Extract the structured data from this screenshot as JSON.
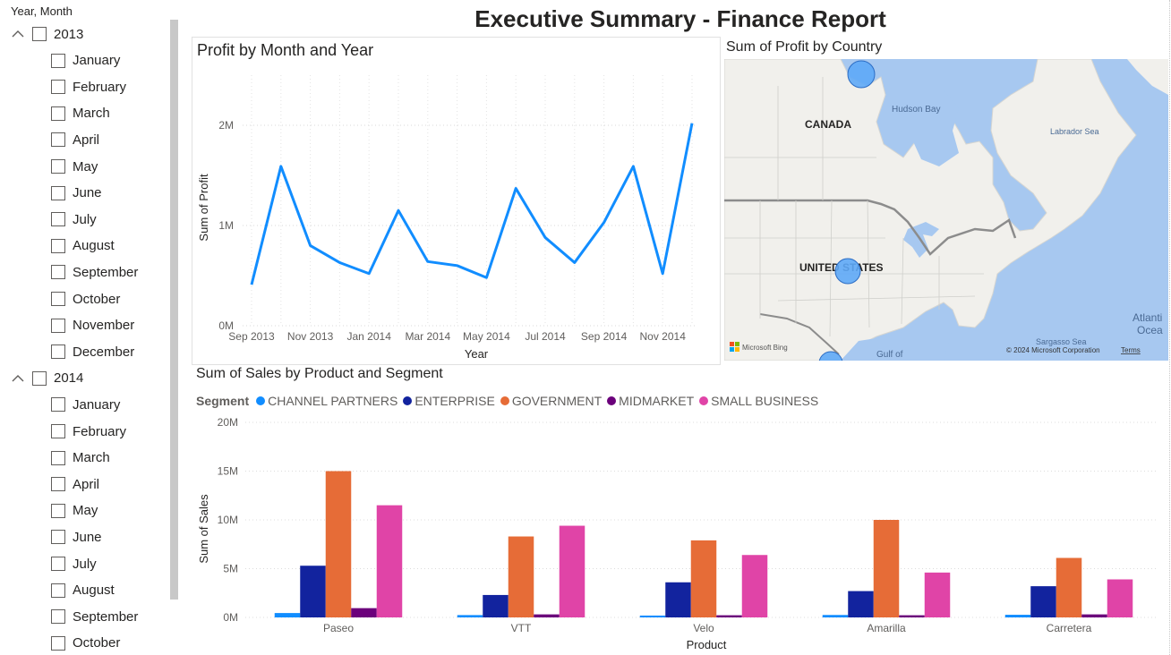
{
  "title": "Executive Summary - Finance Report",
  "slicer": {
    "title": "Year, Month",
    "groups": [
      {
        "year": "2013",
        "months": [
          "January",
          "February",
          "March",
          "April",
          "May",
          "June",
          "July",
          "August",
          "September",
          "October",
          "November",
          "December"
        ]
      },
      {
        "year": "2014",
        "months": [
          "January",
          "February",
          "March",
          "April",
          "May",
          "June",
          "July",
          "August",
          "September",
          "October"
        ]
      }
    ]
  },
  "line_chart": {
    "title": "Profit by Month and Year",
    "xlabel": "Year",
    "ylabel": "Sum of Profit",
    "ytick_labels": [
      "0M",
      "1M",
      "2M"
    ],
    "xtick_labels": [
      "Sep 2013",
      "Nov 2013",
      "Jan 2014",
      "Mar 2014",
      "May 2014",
      "Jul 2014",
      "Sep 2014",
      "Nov 2014"
    ]
  },
  "map": {
    "title": "Sum of Profit by Country",
    "labels": {
      "canada": "CANADA",
      "usa": "UNITED STATES",
      "hudson": "Hudson Bay",
      "labrador": "Labrador Sea",
      "sargasso": "Sargasso Sea",
      "atlantic1": "Atlanti",
      "atlantic2": "Ocea",
      "gulf": "Gulf of",
      "bing": "Microsoft Bing",
      "copyright": "© 2024 Microsoft Corporation",
      "terms": "Terms"
    }
  },
  "bar_chart": {
    "title": "Sum of Sales by Product and Segment",
    "legend_label": "Segment",
    "xlabel": "Product",
    "ylabel": "Sum of Sales",
    "ytick_labels": [
      "0M",
      "5M",
      "10M",
      "15M",
      "20M"
    ]
  },
  "colors": {
    "line": "#118DFF",
    "CHANNEL PARTNERS": "#118DFF",
    "ENTERPRISE": "#12239E",
    "GOVERNMENT": "#E66C37",
    "MIDMARKET": "#6B007B",
    "SMALL BUSINESS": "#E044A7",
    "water": "#a7c8f0",
    "land": "#f1f0ec",
    "bubble": "#5ea9f7"
  },
  "chart_data": [
    {
      "type": "line",
      "title": "Profit by Month and Year",
      "xlabel": "Year",
      "ylabel": "Sum of Profit",
      "x": [
        "Sep 2013",
        "Oct 2013",
        "Nov 2013",
        "Dec 2013",
        "Jan 2014",
        "Feb 2014",
        "Mar 2014",
        "Apr 2014",
        "May 2014",
        "Jun 2014",
        "Jul 2014",
        "Aug 2014",
        "Sep 2014",
        "Oct 2014",
        "Nov 2014",
        "Dec 2014"
      ],
      "series": [
        {
          "values": [
            410000,
            1590000,
            800000,
            630000,
            520000,
            1150000,
            640000,
            600000,
            480000,
            1370000,
            880000,
            630000,
            1030000,
            1590000,
            520000,
            2020000
          ]
        }
      ],
      "ylim": [
        0,
        2500000
      ],
      "grid": true
    },
    {
      "type": "bar",
      "title": "Sum of Sales by Product and Segment",
      "xlabel": "Product",
      "ylabel": "Sum of Sales",
      "categories": [
        "Paseo",
        "VTT",
        "Velo",
        "Amarilla",
        "Carretera"
      ],
      "series": [
        {
          "name": "CHANNEL PARTNERS",
          "values": [
            450000,
            240000,
            190000,
            250000,
            270000
          ]
        },
        {
          "name": "ENTERPRISE",
          "values": [
            5300000,
            2300000,
            3600000,
            2700000,
            3200000
          ]
        },
        {
          "name": "GOVERNMENT",
          "values": [
            15000000,
            8300000,
            7900000,
            10000000,
            6100000
          ]
        },
        {
          "name": "MIDMARKET",
          "values": [
            950000,
            310000,
            220000,
            220000,
            310000
          ]
        },
        {
          "name": "SMALL BUSINESS",
          "values": [
            11500000,
            9400000,
            6400000,
            4600000,
            3900000
          ]
        }
      ],
      "ylim": [
        0,
        20000000
      ],
      "legend": "top-left",
      "grid": true
    }
  ]
}
